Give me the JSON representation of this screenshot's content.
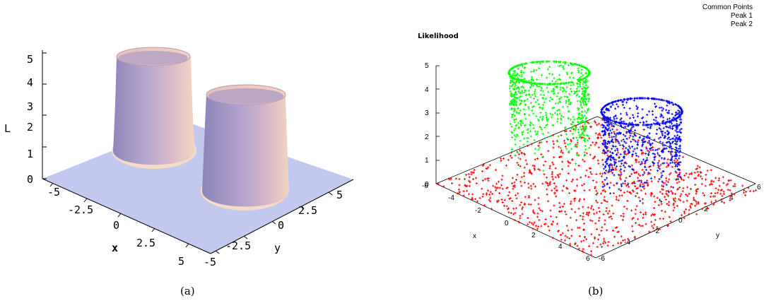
{
  "chart_data": [
    {
      "type": "surface3d",
      "caption": "(a)",
      "zlabel": "L",
      "xlabel": "x",
      "ylabel": "y",
      "z_ticks": [
        "0",
        "1",
        "2",
        "3",
        "4",
        "5"
      ],
      "x_ticks": [
        "-5",
        "-2.5",
        "0",
        "2.5",
        "5"
      ],
      "y_ticks": [
        "-5",
        "-2.5",
        "0",
        "2.5",
        "5"
      ],
      "zlim": [
        0,
        5
      ],
      "xlim": [
        -6,
        6
      ],
      "ylim": [
        -6,
        6
      ],
      "colors": {
        "surface": "#c2c8ee",
        "peak": "#c8a6c6",
        "peak_shadow": "#9c8ab8"
      }
    },
    {
      "type": "scatter3d",
      "caption": "(b)",
      "title": "Likelihood",
      "xlabel": "x",
      "ylabel": "y",
      "z_ticks": [
        "0",
        "1",
        "2",
        "3",
        "4",
        "5"
      ],
      "x_ticks": [
        "-6",
        "-4",
        "-2",
        "0",
        "2",
        "4",
        "6"
      ],
      "y_ticks": [
        "-6",
        "-4",
        "-2",
        "0",
        "2",
        "4",
        "6"
      ],
      "zlim": [
        0,
        5
      ],
      "xlim": [
        -6,
        6
      ],
      "ylim": [
        -6,
        6
      ],
      "series": [
        {
          "name": "Common Points",
          "color": "#ff0000",
          "z": 0
        },
        {
          "name": "Peak 1",
          "color": "#00ff00",
          "z": 5
        },
        {
          "name": "Peak 2",
          "color": "#0000ff",
          "z": 4.4
        }
      ]
    }
  ]
}
